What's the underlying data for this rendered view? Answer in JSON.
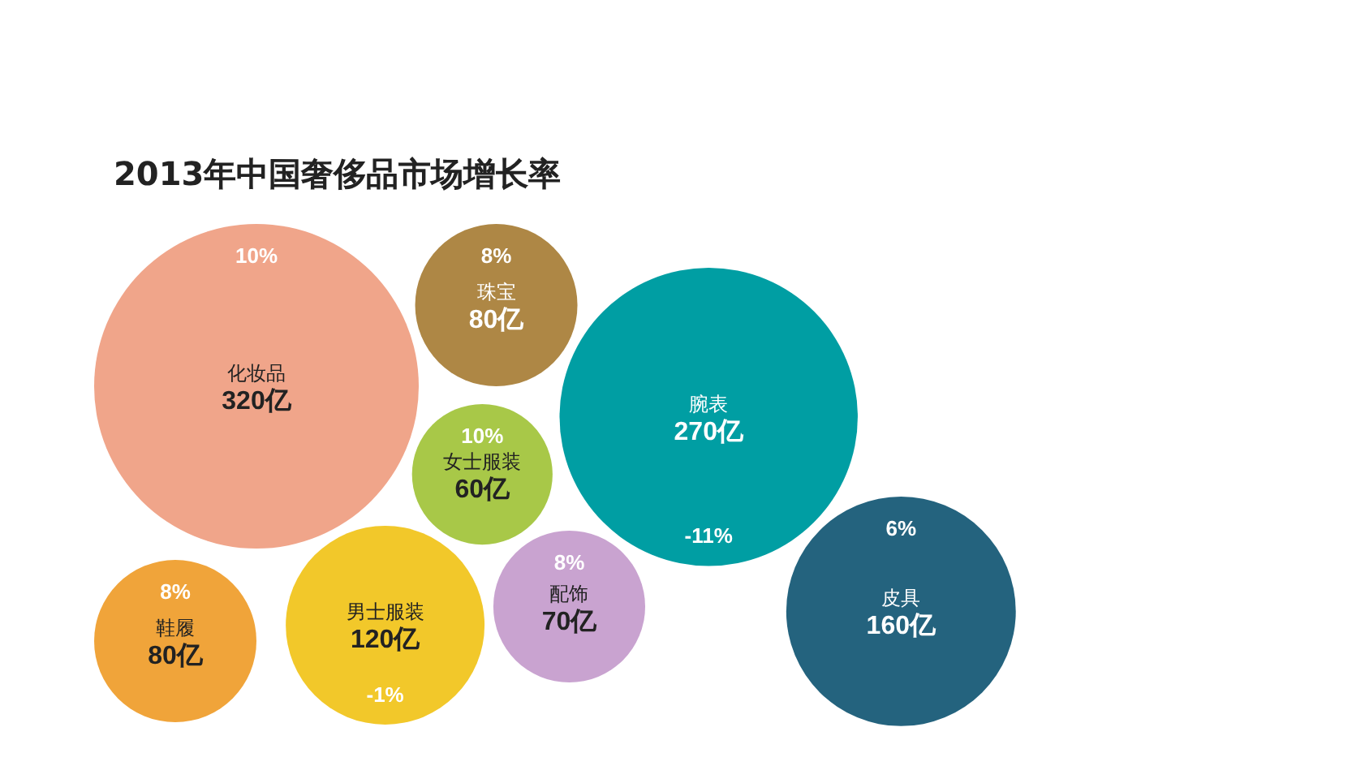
{
  "chart_data": {
    "type": "other",
    "title": "2013年中国奢侈品市场增长率",
    "categories": [
      "化妆品",
      "鞋履",
      "男士服装",
      "珠宝",
      "女士服装",
      "配饰",
      "腕表",
      "皮具"
    ],
    "series": [
      {
        "colors": [
          "#f0a58a",
          "#f0a43a",
          "#f2c82a",
          "#ae8745",
          "#a8c848",
          "#c9a3d0",
          "#009ea3",
          "#24637e"
        ],
        "values": [
          320,
          80,
          120,
          80,
          60,
          70,
          270,
          160
        ],
        "value_labels": [
          "320亿",
          "80亿",
          "120亿",
          "80亿",
          "60亿",
          "70亿",
          "270亿",
          "160亿"
        ]
      },
      {
        "values": [
          10,
          8,
          -1,
          8,
          10,
          8,
          -11,
          6
        ],
        "value_labels": [
          "10%",
          "8%",
          "-1%",
          "8%",
          "10%",
          "8%",
          "-11%",
          "6%"
        ]
      }
    ]
  }
}
